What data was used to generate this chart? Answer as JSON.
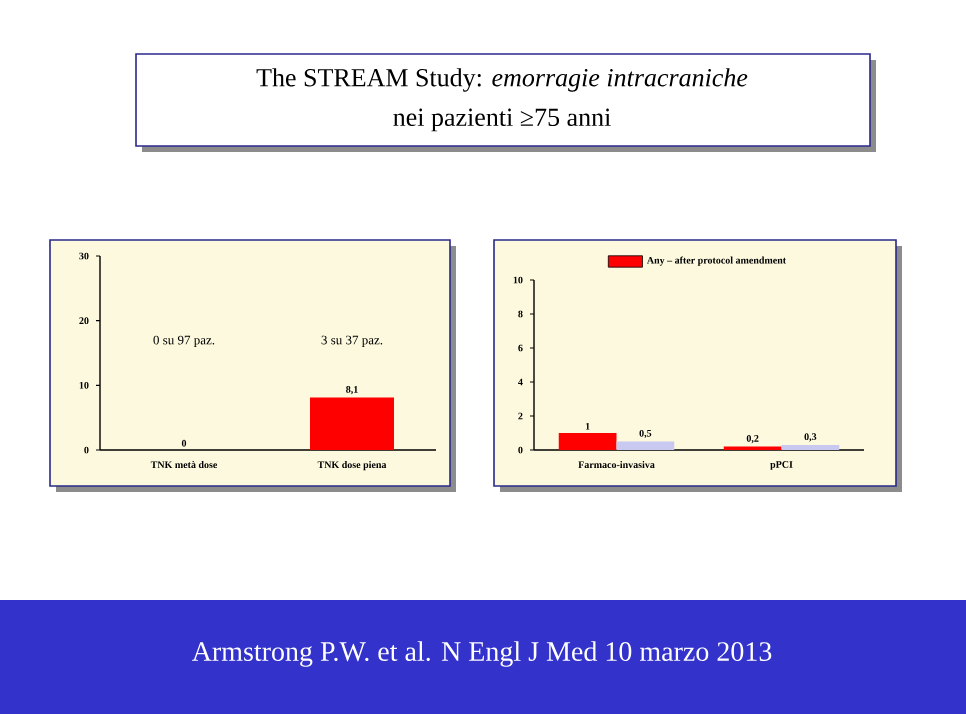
{
  "chart_data": [
    {
      "type": "bar",
      "title": "The STREAM Study: *emorragie intracraniche*",
      "subtitle": "nei pazienti ≥75 anni",
      "categories": [
        "TNK metà dose",
        "TNK dose piena"
      ],
      "series": [
        {
          "color": "#ff0000",
          "values": [
            0,
            8.1
          ],
          "value_labels": [
            "0",
            "8,1"
          ]
        }
      ],
      "ylim": [
        0,
        30
      ],
      "yticks": [
        0,
        10,
        20,
        30
      ],
      "annotations": [
        "0 su 97 paz.",
        "3 su 37 paz."
      ]
    },
    {
      "type": "bar",
      "categories": [
        "Farmaco-invasiva",
        "pPCI"
      ],
      "series": [
        {
          "name": "Any – after protocol amendment",
          "color": "#ff0000",
          "values": [
            1,
            0.2
          ],
          "value_labels": [
            "1",
            "0,2"
          ]
        },
        {
          "color": "#c8c8f0",
          "values": [
            0.5,
            0.3
          ],
          "value_labels": [
            "0,5",
            "0,3"
          ]
        }
      ],
      "ylim": [
        0,
        10
      ],
      "yticks": [
        0,
        2,
        4,
        6,
        8,
        10
      ],
      "legend": "top",
      "annotations": [
        "Armstrong P.W. et al. N Engl J Med 10 marzo 2013"
      ]
    }
  ]
}
